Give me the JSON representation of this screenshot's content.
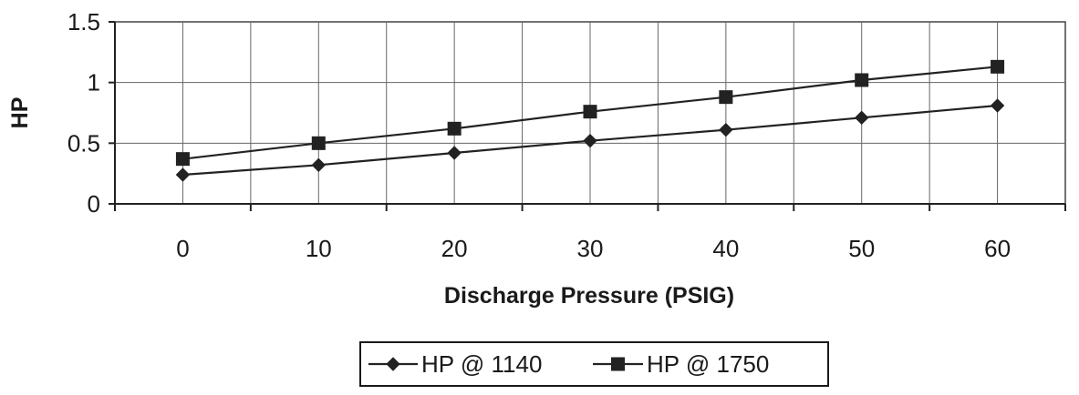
{
  "chart_data": {
    "type": "line",
    "xlabel": "Discharge Pressure (PSIG)",
    "ylabel": "HP",
    "ylim": [
      0,
      1.5
    ],
    "yticks": [
      "0",
      "0.5",
      "1",
      "1.5"
    ],
    "categories": [
      "0",
      "10",
      "20",
      "30",
      "40",
      "50",
      "60"
    ],
    "grid": true,
    "legend_position": "bottom",
    "series": [
      {
        "name": "HP @ 1140",
        "marker": "diamond",
        "color": "#222222",
        "values": [
          0.24,
          0.32,
          0.42,
          0.52,
          0.61,
          0.71,
          0.81
        ]
      },
      {
        "name": "HP @ 1750",
        "marker": "square",
        "color": "#222222",
        "values": [
          0.37,
          0.5,
          0.62,
          0.76,
          0.88,
          1.02,
          1.13
        ]
      }
    ]
  }
}
